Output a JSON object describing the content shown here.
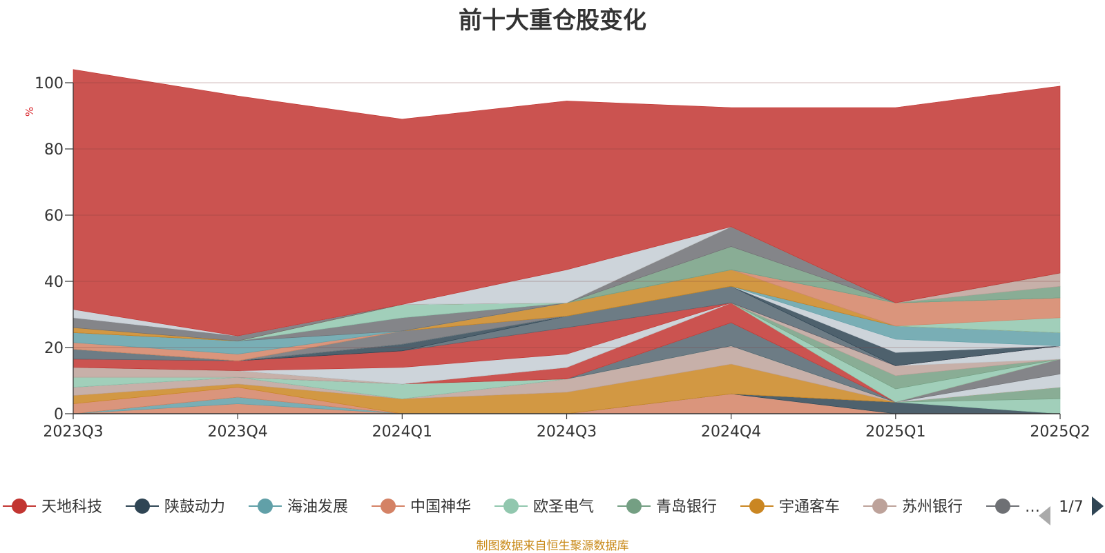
{
  "title": "前十大重仓股变化",
  "source": "制图数据来自恒生聚源数据库",
  "legend": {
    "page_indicator": "1/7",
    "items": [
      {
        "label": "天地科技",
        "color": "#c23531"
      },
      {
        "label": "陕鼓动力",
        "color": "#2f4554"
      },
      {
        "label": "海油发展",
        "color": "#61a0a8"
      },
      {
        "label": "中国神华",
        "color": "#d48265"
      },
      {
        "label": "欧圣电气",
        "color": "#91c7ae"
      },
      {
        "label": "青岛银行",
        "color": "#749f83"
      },
      {
        "label": "宇通客车",
        "color": "#ca8622"
      },
      {
        "label": "苏州银行",
        "color": "#bda29a"
      },
      {
        "label": "…",
        "color": "#6e7074"
      }
    ]
  },
  "chart_data": {
    "type": "area",
    "stacked": true,
    "title": "前十大重仓股变化",
    "ylabel": "%",
    "ylim": [
      0,
      100
    ],
    "yticks": [
      0,
      20,
      40,
      60,
      80,
      100
    ],
    "categories": [
      "2023Q3",
      "2023Q4",
      "2024Q1",
      "2024Q3",
      "2024Q4",
      "2025Q1",
      "2025Q2"
    ],
    "grid": true,
    "legend_position": "bottom",
    "layers": [
      {
        "color": "#d48265",
        "values": [
          0,
          3,
          0,
          0,
          6,
          0,
          0
        ]
      },
      {
        "color": "#61a0a8",
        "values": [
          0,
          2,
          0,
          0,
          0,
          0,
          0
        ]
      },
      {
        "color": "#2f4554",
        "values": [
          0,
          0,
          0,
          0,
          0,
          3.5,
          0
        ]
      },
      {
        "color": "#91c7ae",
        "values": [
          0,
          0,
          0,
          0,
          0,
          0,
          4.5
        ]
      },
      {
        "color": "#749f83",
        "values": [
          0,
          0,
          0,
          0,
          0,
          0,
          3.5
        ]
      },
      {
        "color": "#d48265",
        "values": [
          3,
          3,
          0,
          0,
          0,
          0,
          0
        ]
      },
      {
        "color": "#ca8622",
        "values": [
          2.5,
          1,
          4.5,
          6.5,
          9,
          0,
          0
        ]
      },
      {
        "color": "#bda29a",
        "values": [
          2.5,
          2,
          0,
          4,
          5.5,
          0,
          0
        ]
      },
      {
        "color": "#c4ccd3",
        "values": [
          0,
          0,
          0,
          0,
          0,
          0,
          4
        ]
      },
      {
        "color": "#6e7074",
        "values": [
          0,
          0,
          0,
          0,
          0,
          0,
          4.5
        ]
      },
      {
        "color": "#91c7ae",
        "values": [
          3,
          0,
          4.5,
          0,
          0,
          0,
          0
        ]
      },
      {
        "color": "#546570",
        "values": [
          0,
          0,
          0,
          0,
          7,
          0,
          0
        ]
      },
      {
        "color": "#bda29a",
        "values": [
          3,
          2,
          0,
          0,
          0,
          0,
          0
        ]
      },
      {
        "color": "#c23531",
        "values": [
          0,
          0,
          0,
          3.5,
          6,
          0,
          0
        ]
      },
      {
        "color": "#91c7ae",
        "values": [
          0,
          0,
          0,
          0,
          0,
          4,
          0
        ]
      },
      {
        "color": "#749f83",
        "values": [
          0,
          0,
          0,
          0,
          0,
          4,
          0
        ]
      },
      {
        "color": "#bda29a",
        "values": [
          0,
          0,
          0,
          0,
          0,
          3,
          0
        ]
      },
      {
        "color": "#c4ccd3",
        "values": [
          0,
          0,
          5,
          4,
          0,
          0,
          4
        ]
      },
      {
        "color": "#c23531",
        "values": [
          2.5,
          3,
          5,
          8,
          0,
          0,
          0
        ]
      },
      {
        "color": "#546570",
        "values": [
          3,
          0,
          0,
          3.5,
          5,
          0,
          0
        ]
      },
      {
        "color": "#2f4554",
        "values": [
          0,
          0,
          2,
          0,
          0,
          4,
          0
        ]
      },
      {
        "color": "#c4ccd3",
        "values": [
          0,
          0,
          0,
          0,
          0,
          4,
          0
        ]
      },
      {
        "color": "#61a0a8",
        "values": [
          0,
          0,
          0,
          0,
          0,
          4,
          4
        ]
      },
      {
        "color": "#6e7074",
        "values": [
          0,
          0,
          4,
          0,
          0,
          0,
          0
        ]
      },
      {
        "color": "#ca8622",
        "values": [
          0,
          0,
          0,
          4,
          5,
          0,
          0
        ]
      },
      {
        "color": "#91c7ae",
        "values": [
          0,
          0,
          0,
          0,
          0,
          0,
          4.5
        ]
      },
      {
        "color": "#d48265",
        "values": [
          2,
          2,
          0,
          0,
          0,
          7,
          6
        ]
      },
      {
        "color": "#61a0a8",
        "values": [
          3,
          4,
          0,
          0,
          0,
          0,
          0
        ]
      },
      {
        "color": "#6e7074",
        "values": [
          0,
          0,
          4,
          0,
          0,
          0,
          0
        ]
      },
      {
        "color": "#91c7ae",
        "values": [
          0,
          0,
          4,
          0,
          0,
          0,
          0
        ]
      },
      {
        "color": "#749f83",
        "values": [
          0,
          0,
          0,
          0,
          7,
          0,
          3.5
        ]
      },
      {
        "color": "#bda29a",
        "values": [
          0,
          0,
          0,
          0,
          0,
          0,
          4
        ]
      },
      {
        "color": "#6e7074",
        "values": [
          0,
          0,
          0,
          0,
          6,
          0,
          0
        ]
      },
      {
        "color": "#ca8622",
        "values": [
          1.5,
          0,
          0,
          0,
          0,
          0,
          0
        ]
      },
      {
        "color": "#6e7074",
        "values": [
          3,
          1.5,
          0,
          0,
          0,
          0,
          0
        ]
      },
      {
        "color": "#c4ccd3",
        "values": [
          2.5,
          0,
          0,
          10,
          0,
          0,
          0
        ]
      },
      {
        "color": "#c23531",
        "values": [
          72.5,
          72.5,
          56,
          51,
          36,
          59,
          56.5
        ]
      }
    ]
  }
}
